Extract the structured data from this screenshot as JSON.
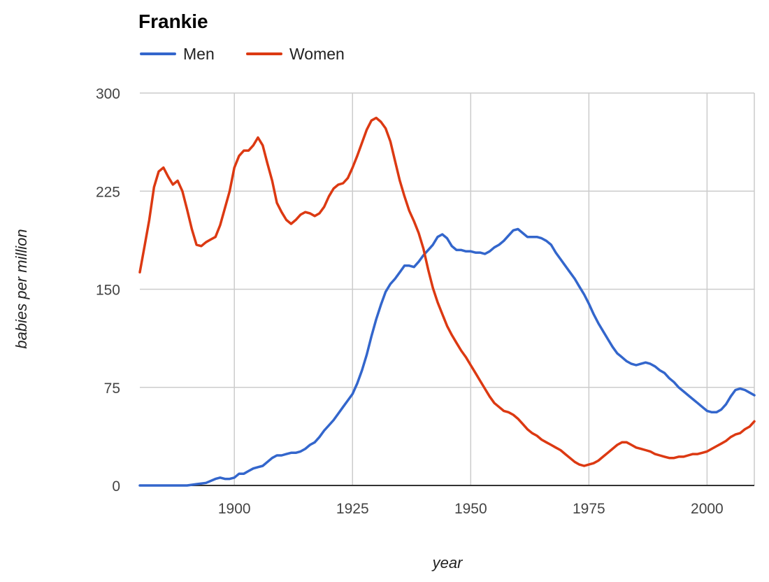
{
  "chart_data": {
    "type": "line",
    "title": "Frankie",
    "xlabel": "year",
    "ylabel": "babies per million",
    "xlim": [
      1880,
      2010
    ],
    "ylim": [
      0,
      300
    ],
    "x_ticks": [
      1900,
      1925,
      1950,
      1975,
      2000
    ],
    "y_ticks": [
      0,
      75,
      150,
      225,
      300
    ],
    "grid": true,
    "legend_position": "top-left",
    "series": [
      {
        "name": "Men",
        "color": "#3366cc",
        "points": [
          [
            1880,
            0
          ],
          [
            1885,
            0
          ],
          [
            1890,
            0
          ],
          [
            1892,
            1
          ],
          [
            1894,
            2
          ],
          [
            1896,
            5
          ],
          [
            1897,
            6
          ],
          [
            1898,
            5
          ],
          [
            1899,
            5
          ],
          [
            1900,
            6
          ],
          [
            1901,
            9
          ],
          [
            1902,
            9
          ],
          [
            1903,
            11
          ],
          [
            1904,
            13
          ],
          [
            1905,
            14
          ],
          [
            1906,
            15
          ],
          [
            1907,
            18
          ],
          [
            1908,
            21
          ],
          [
            1909,
            23
          ],
          [
            1910,
            23
          ],
          [
            1911,
            24
          ],
          [
            1912,
            25
          ],
          [
            1913,
            25
          ],
          [
            1914,
            26
          ],
          [
            1915,
            28
          ],
          [
            1916,
            31
          ],
          [
            1917,
            33
          ],
          [
            1918,
            37
          ],
          [
            1919,
            42
          ],
          [
            1920,
            46
          ],
          [
            1921,
            50
          ],
          [
            1922,
            55
          ],
          [
            1923,
            60
          ],
          [
            1924,
            65
          ],
          [
            1925,
            70
          ],
          [
            1926,
            78
          ],
          [
            1927,
            88
          ],
          [
            1928,
            100
          ],
          [
            1929,
            114
          ],
          [
            1930,
            127
          ],
          [
            1931,
            138
          ],
          [
            1932,
            148
          ],
          [
            1933,
            154
          ],
          [
            1934,
            158
          ],
          [
            1935,
            163
          ],
          [
            1936,
            168
          ],
          [
            1937,
            168
          ],
          [
            1938,
            167
          ],
          [
            1939,
            171
          ],
          [
            1940,
            176
          ],
          [
            1941,
            180
          ],
          [
            1942,
            184
          ],
          [
            1943,
            190
          ],
          [
            1944,
            192
          ],
          [
            1945,
            189
          ],
          [
            1946,
            183
          ],
          [
            1947,
            180
          ],
          [
            1948,
            180
          ],
          [
            1949,
            179
          ],
          [
            1950,
            179
          ],
          [
            1951,
            178
          ],
          [
            1952,
            178
          ],
          [
            1953,
            177
          ],
          [
            1954,
            179
          ],
          [
            1955,
            182
          ],
          [
            1956,
            184
          ],
          [
            1957,
            187
          ],
          [
            1958,
            191
          ],
          [
            1959,
            195
          ],
          [
            1960,
            196
          ],
          [
            1961,
            193
          ],
          [
            1962,
            190
          ],
          [
            1963,
            190
          ],
          [
            1964,
            190
          ],
          [
            1965,
            189
          ],
          [
            1966,
            187
          ],
          [
            1967,
            184
          ],
          [
            1968,
            178
          ],
          [
            1969,
            173
          ],
          [
            1970,
            168
          ],
          [
            1971,
            163
          ],
          [
            1972,
            158
          ],
          [
            1973,
            152
          ],
          [
            1974,
            146
          ],
          [
            1975,
            139
          ],
          [
            1976,
            131
          ],
          [
            1977,
            124
          ],
          [
            1978,
            118
          ],
          [
            1979,
            112
          ],
          [
            1980,
            106
          ],
          [
            1981,
            101
          ],
          [
            1982,
            98
          ],
          [
            1983,
            95
          ],
          [
            1984,
            93
          ],
          [
            1985,
            92
          ],
          [
            1986,
            93
          ],
          [
            1987,
            94
          ],
          [
            1988,
            93
          ],
          [
            1989,
            91
          ],
          [
            1990,
            88
          ],
          [
            1991,
            86
          ],
          [
            1992,
            82
          ],
          [
            1993,
            79
          ],
          [
            1994,
            75
          ],
          [
            1995,
            72
          ],
          [
            1996,
            69
          ],
          [
            1997,
            66
          ],
          [
            1998,
            63
          ],
          [
            1999,
            60
          ],
          [
            2000,
            57
          ],
          [
            2001,
            56
          ],
          [
            2002,
            56
          ],
          [
            2003,
            58
          ],
          [
            2004,
            62
          ],
          [
            2005,
            68
          ],
          [
            2006,
            73
          ],
          [
            2007,
            74
          ],
          [
            2008,
            73
          ],
          [
            2009,
            71
          ],
          [
            2010,
            69
          ]
        ]
      },
      {
        "name": "Women",
        "color": "#dc3912",
        "points": [
          [
            1880,
            163
          ],
          [
            1881,
            183
          ],
          [
            1882,
            203
          ],
          [
            1883,
            228
          ],
          [
            1884,
            240
          ],
          [
            1885,
            243
          ],
          [
            1886,
            236
          ],
          [
            1887,
            230
          ],
          [
            1888,
            233
          ],
          [
            1889,
            225
          ],
          [
            1890,
            211
          ],
          [
            1891,
            196
          ],
          [
            1892,
            184
          ],
          [
            1893,
            183
          ],
          [
            1894,
            186
          ],
          [
            1895,
            188
          ],
          [
            1896,
            190
          ],
          [
            1897,
            199
          ],
          [
            1898,
            212
          ],
          [
            1899,
            225
          ],
          [
            1900,
            243
          ],
          [
            1901,
            252
          ],
          [
            1902,
            256
          ],
          [
            1903,
            256
          ],
          [
            1904,
            260
          ],
          [
            1905,
            266
          ],
          [
            1906,
            260
          ],
          [
            1907,
            246
          ],
          [
            1908,
            233
          ],
          [
            1909,
            216
          ],
          [
            1910,
            209
          ],
          [
            1911,
            203
          ],
          [
            1912,
            200
          ],
          [
            1913,
            203
          ],
          [
            1914,
            207
          ],
          [
            1915,
            209
          ],
          [
            1916,
            208
          ],
          [
            1917,
            206
          ],
          [
            1918,
            208
          ],
          [
            1919,
            213
          ],
          [
            1920,
            221
          ],
          [
            1921,
            227
          ],
          [
            1922,
            230
          ],
          [
            1923,
            231
          ],
          [
            1924,
            235
          ],
          [
            1925,
            243
          ],
          [
            1926,
            252
          ],
          [
            1927,
            262
          ],
          [
            1928,
            272
          ],
          [
            1929,
            279
          ],
          [
            1930,
            281
          ],
          [
            1931,
            278
          ],
          [
            1932,
            273
          ],
          [
            1933,
            263
          ],
          [
            1934,
            248
          ],
          [
            1935,
            233
          ],
          [
            1936,
            221
          ],
          [
            1937,
            210
          ],
          [
            1938,
            202
          ],
          [
            1939,
            193
          ],
          [
            1940,
            181
          ],
          [
            1941,
            165
          ],
          [
            1942,
            151
          ],
          [
            1943,
            140
          ],
          [
            1944,
            131
          ],
          [
            1945,
            122
          ],
          [
            1946,
            115
          ],
          [
            1947,
            109
          ],
          [
            1948,
            103
          ],
          [
            1949,
            98
          ],
          [
            1950,
            92
          ],
          [
            1951,
            86
          ],
          [
            1952,
            80
          ],
          [
            1953,
            74
          ],
          [
            1954,
            68
          ],
          [
            1955,
            63
          ],
          [
            1956,
            60
          ],
          [
            1957,
            57
          ],
          [
            1958,
            56
          ],
          [
            1959,
            54
          ],
          [
            1960,
            51
          ],
          [
            1961,
            47
          ],
          [
            1962,
            43
          ],
          [
            1963,
            40
          ],
          [
            1964,
            38
          ],
          [
            1965,
            35
          ],
          [
            1966,
            33
          ],
          [
            1967,
            31
          ],
          [
            1968,
            29
          ],
          [
            1969,
            27
          ],
          [
            1970,
            24
          ],
          [
            1971,
            21
          ],
          [
            1972,
            18
          ],
          [
            1973,
            16
          ],
          [
            1974,
            15
          ],
          [
            1975,
            16
          ],
          [
            1976,
            17
          ],
          [
            1977,
            19
          ],
          [
            1978,
            22
          ],
          [
            1979,
            25
          ],
          [
            1980,
            28
          ],
          [
            1981,
            31
          ],
          [
            1982,
            33
          ],
          [
            1983,
            33
          ],
          [
            1984,
            31
          ],
          [
            1985,
            29
          ],
          [
            1986,
            28
          ],
          [
            1987,
            27
          ],
          [
            1988,
            26
          ],
          [
            1989,
            24
          ],
          [
            1990,
            23
          ],
          [
            1991,
            22
          ],
          [
            1992,
            21
          ],
          [
            1993,
            21
          ],
          [
            1994,
            22
          ],
          [
            1995,
            22
          ],
          [
            1996,
            23
          ],
          [
            1997,
            24
          ],
          [
            1998,
            24
          ],
          [
            1999,
            25
          ],
          [
            2000,
            26
          ],
          [
            2001,
            28
          ],
          [
            2002,
            30
          ],
          [
            2003,
            32
          ],
          [
            2004,
            34
          ],
          [
            2005,
            37
          ],
          [
            2006,
            39
          ],
          [
            2007,
            40
          ],
          [
            2008,
            43
          ],
          [
            2009,
            45
          ],
          [
            2010,
            49
          ]
        ]
      }
    ]
  }
}
